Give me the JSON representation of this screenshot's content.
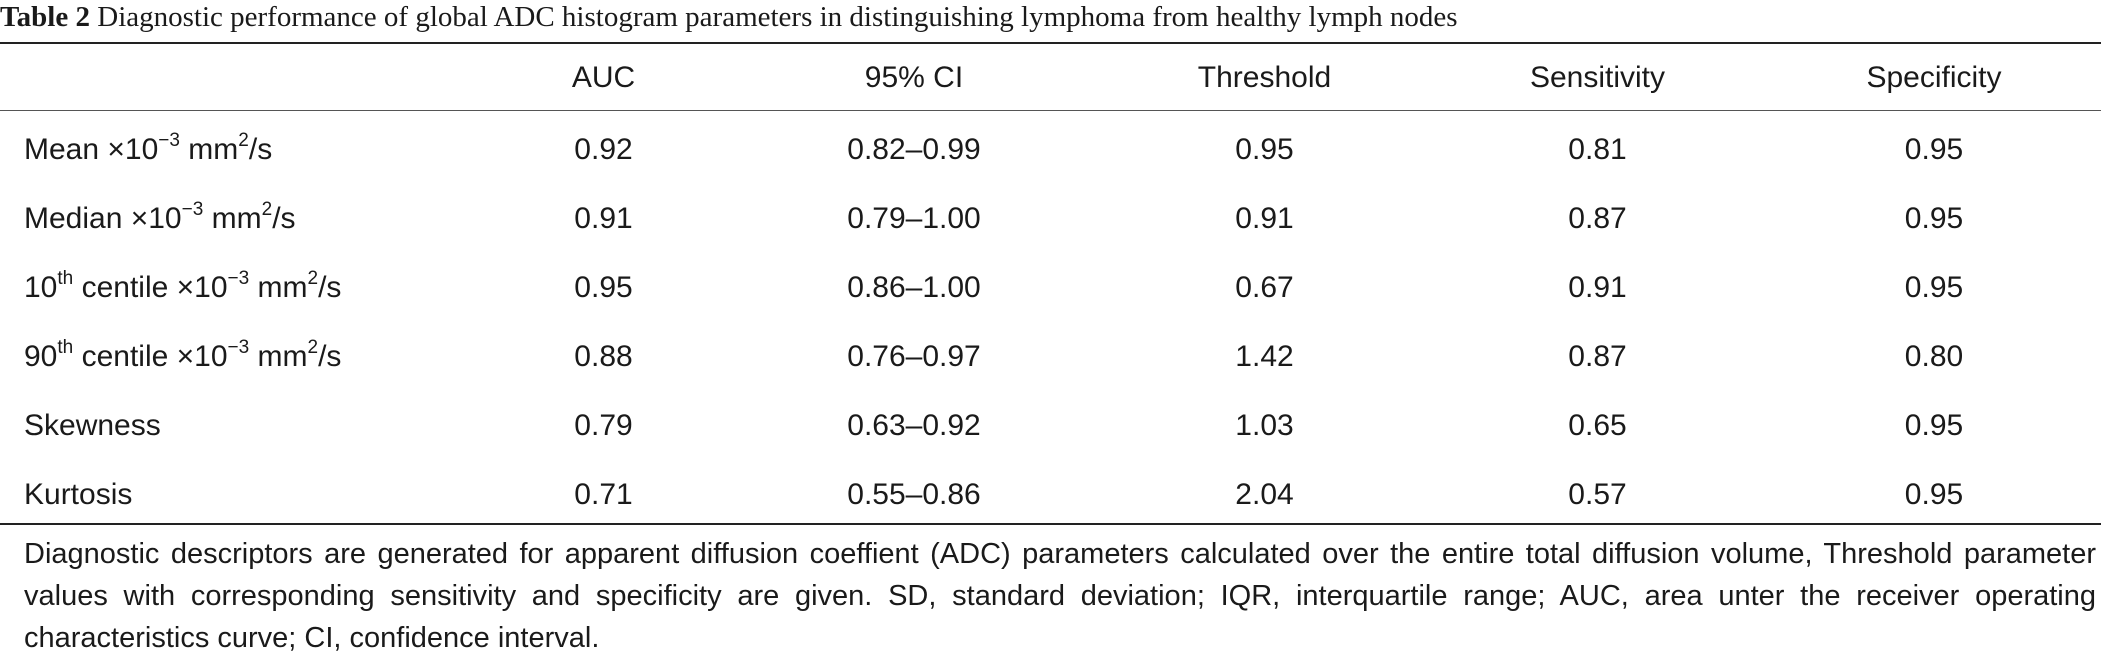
{
  "caption": {
    "label": "Table 2",
    "text": "Diagnostic performance of global ADC histogram parameters in distinguishing lymphoma from healthy lymph nodes"
  },
  "table": {
    "columns": [
      "",
      "AUC",
      "95% CI",
      "Threshold",
      "Sensitivity",
      "Specificity"
    ],
    "rows": [
      {
        "parameter": {
          "pre": "Mean ×10",
          "sup1": "−3",
          "mid": " mm",
          "sup2": "2",
          "post": "/s"
        },
        "auc": "0.92",
        "ci": "0.82–0.99",
        "threshold": "0.95",
        "sensitivity": "0.81",
        "specificity": "0.95"
      },
      {
        "parameter": {
          "pre": "Median ×10",
          "sup1": "−3",
          "mid": " mm",
          "sup2": "2",
          "post": "/s"
        },
        "auc": "0.91",
        "ci": "0.79–1.00",
        "threshold": "0.91",
        "sensitivity": "0.87",
        "specificity": "0.95"
      },
      {
        "parameter": {
          "lead": "10",
          "leadsup": "th",
          "pre": " centile ×10",
          "sup1": "−3",
          "mid": " mm",
          "sup2": "2",
          "post": "/s"
        },
        "auc": "0.95",
        "ci": "0.86–1.00",
        "threshold": "0.67",
        "sensitivity": "0.91",
        "specificity": "0.95"
      },
      {
        "parameter": {
          "lead": "90",
          "leadsup": "th",
          "pre": " centile ×10",
          "sup1": "−3",
          "mid": " mm",
          "sup2": "2",
          "post": "/s"
        },
        "auc": "0.88",
        "ci": "0.76–0.97",
        "threshold": "1.42",
        "sensitivity": "0.87",
        "specificity": "0.80"
      },
      {
        "parameter": {
          "pre": "Skewness"
        },
        "auc": "0.79",
        "ci": "0.63–0.92",
        "threshold": "1.03",
        "sensitivity": "0.65",
        "specificity": "0.95"
      },
      {
        "parameter": {
          "pre": "Kurtosis"
        },
        "auc": "0.71",
        "ci": "0.55–0.86",
        "threshold": "2.04",
        "sensitivity": "0.57",
        "specificity": "0.95"
      }
    ]
  },
  "footnote": "Diagnostic descriptors are generated for apparent diffusion coeffient (ADC) parameters calculated over the entire total diffusion volume, Threshold parameter values with corresponding sensitivity and specificity are given. SD, standard deviation; IQR, interquartile range; AUC, area unter the receiver operating characteristics curve; CI, confidence interval."
}
